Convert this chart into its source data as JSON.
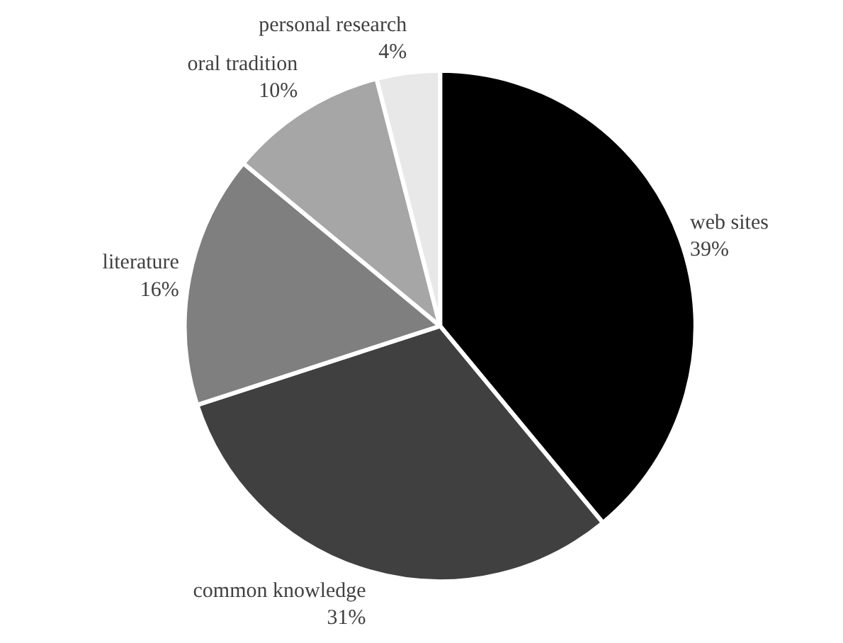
{
  "chart_data": {
    "type": "pie",
    "categories": [
      "web sites",
      "common knowledge",
      "literature",
      "oral tradition",
      "personal research"
    ],
    "values": [
      39,
      31,
      16,
      10,
      4
    ],
    "value_labels": [
      "39%",
      "31%",
      "16%",
      "10%",
      "4%"
    ],
    "colors": [
      "#000000",
      "#404040",
      "#7f7f7f",
      "#a6a6a6",
      "#e8e8e8"
    ]
  }
}
